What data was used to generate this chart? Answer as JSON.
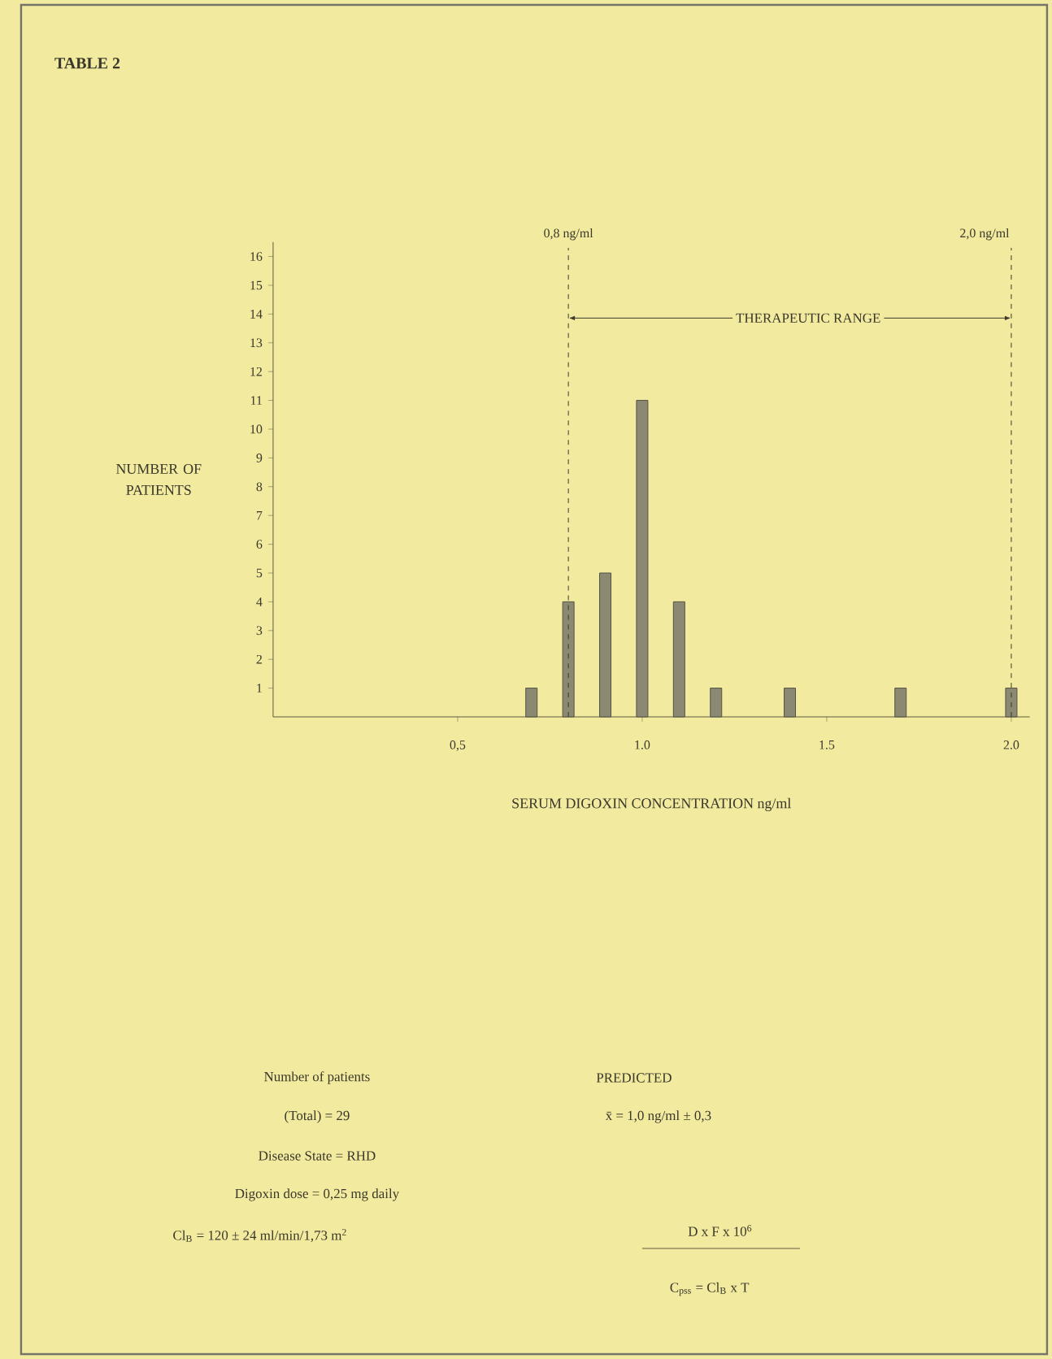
{
  "chart_data": {
    "type": "bar",
    "title": "TABLE 2",
    "xlabel": "SERUM DIGOXIN CONCENTRATION ng/ml",
    "ylabel": "NUMBER OF PATIENTS",
    "x": [
      0.7,
      0.8,
      0.9,
      1.0,
      1.1,
      1.2,
      1.4,
      1.7,
      2.0
    ],
    "values": [
      1,
      4,
      5,
      11,
      4,
      1,
      1,
      1,
      1
    ],
    "color": "#8c8972",
    "xlim": [
      0,
      2.05
    ],
    "xticks": [
      {
        "value": 0.5,
        "label": "0,5"
      },
      {
        "value": 1.0,
        "label": "1.0"
      },
      {
        "value": 1.5,
        "label": "1.5"
      },
      {
        "value": 2.0,
        "label": "2.0"
      }
    ],
    "ylim": [
      0,
      16.5
    ],
    "yticks": [
      1,
      2,
      3,
      4,
      5,
      6,
      7,
      8,
      9,
      10,
      11,
      12,
      13,
      14,
      15,
      16
    ],
    "ref_lines": [
      {
        "axis": "x",
        "value": 0.8,
        "label": "0,8 ng/ml",
        "line_style": "dashed"
      },
      {
        "axis": "x",
        "value": 2.0,
        "label": "2,0 ng/ml",
        "line_style": "dashed"
      }
    ],
    "annotations": [
      "THERAPEUTIC RANGE",
      "Number of patients",
      "(Total) = 29",
      "Disease State = RHD",
      "Digoxin dose = 0,25 mg daily",
      "Cl$_{B}$ = 120 ± 24 ml/min/1,73 m$^{2}$",
      "PREDICTED",
      "x̄ = 1,0 ng/ml ± 0,3",
      "D x F x 10$^{6}$",
      "C$_{pss}$ = Cl$_{B}$ x T"
    ]
  }
}
